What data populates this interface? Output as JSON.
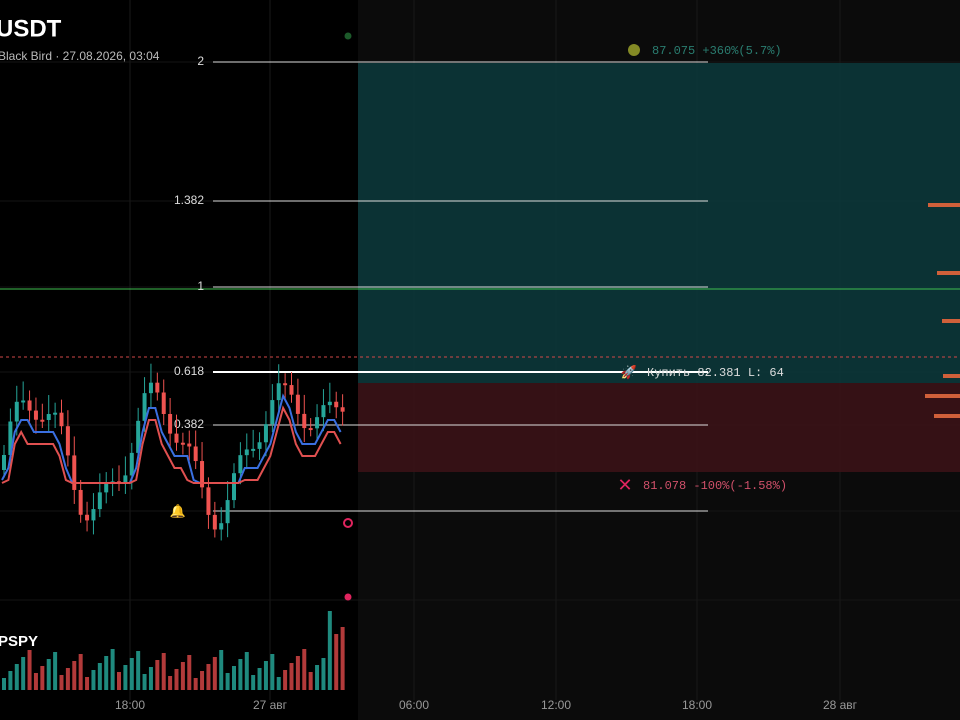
{
  "header": {
    "symbol": "USDT",
    "subtitle": "Black Bird · 27.08.2026, 03:04"
  },
  "fib": {
    "levels": [
      "2",
      "1.382",
      "1",
      "0.618",
      "0.382"
    ]
  },
  "position": {
    "target": "87.075 +360%(5.7%)",
    "entry": "Купить 82.381 L: 64",
    "stop": "81.078 -100%(-1.58%)"
  },
  "volume": {
    "label": "PSPY"
  },
  "time_axis": [
    "18:00",
    "27 авг",
    "06:00",
    "12:00",
    "18:00",
    "28 авг"
  ]
}
